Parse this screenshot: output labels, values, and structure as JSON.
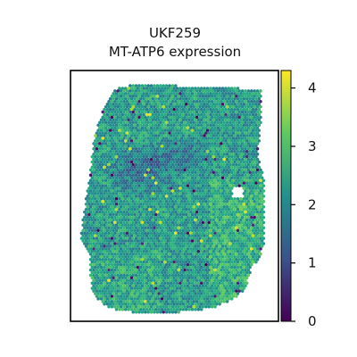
{
  "chart_data": {
    "type": "heatmap",
    "subtype": "spatial-transcriptomics-spot-plot",
    "title_lines": [
      "UKF259",
      "MT-ATP6 expression"
    ],
    "xlabel": "",
    "ylabel": "",
    "axis_ticks_visible": false,
    "colormap": "viridis",
    "color_range": [
      0,
      4.3
    ],
    "colorbar_ticks": [
      "0",
      "1",
      "2",
      "3",
      "4"
    ],
    "colorbar_tick_values": [
      0,
      1,
      2,
      3,
      4
    ],
    "spot_value_summary": {
      "typical": 2.3,
      "low_region": "upper-left interior with values near 1",
      "high_spots": "scattered, up to about 4"
    },
    "frame_color": "#000000"
  }
}
